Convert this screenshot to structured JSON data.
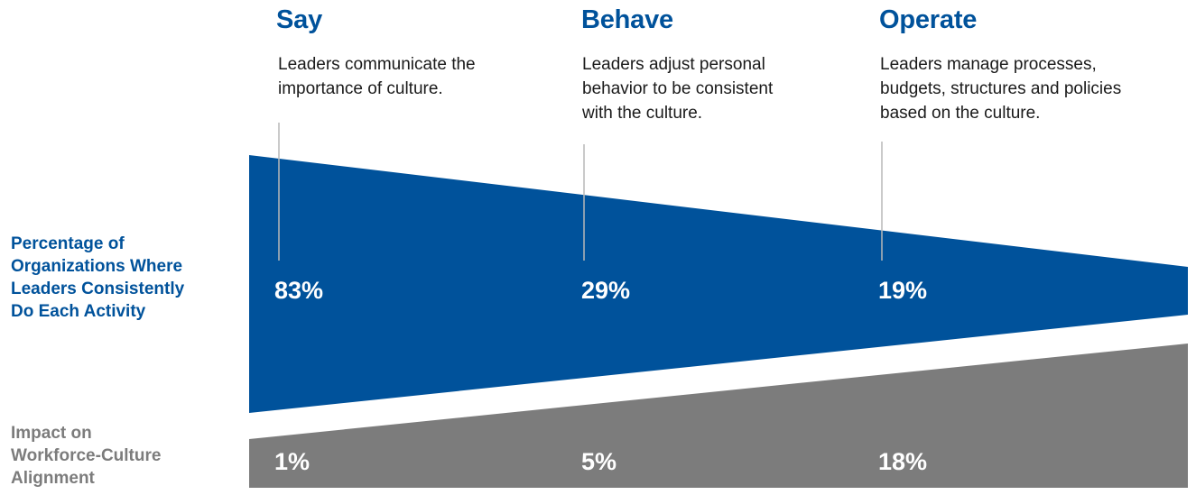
{
  "colors": {
    "blue": "#00529b",
    "gray": "#7c7c7c",
    "leader_line": "#b8b8b8",
    "background": "#ffffff"
  },
  "stages": [
    {
      "heading": "Say",
      "description_lines": [
        "Leaders communicate the",
        "importance of culture."
      ],
      "percentage_organizations": "83%",
      "impact_alignment": "1%"
    },
    {
      "heading": "Behave",
      "description_lines": [
        "Leaders adjust personal",
        "behavior to be consistent",
        "with the culture."
      ],
      "percentage_organizations": "29%",
      "impact_alignment": "5%"
    },
    {
      "heading": "Operate",
      "description_lines": [
        "Leaders manage processes,",
        "budgets, structures and policies",
        "based on the culture."
      ],
      "percentage_organizations": "19%",
      "impact_alignment": "18%"
    }
  ],
  "row_labels": {
    "percentage": [
      "Percentage of",
      "Organizations Where",
      "Leaders Consistently",
      "Do Each Activity"
    ],
    "impact": [
      "Impact on",
      "Workforce-Culture",
      "Alignment"
    ]
  }
}
